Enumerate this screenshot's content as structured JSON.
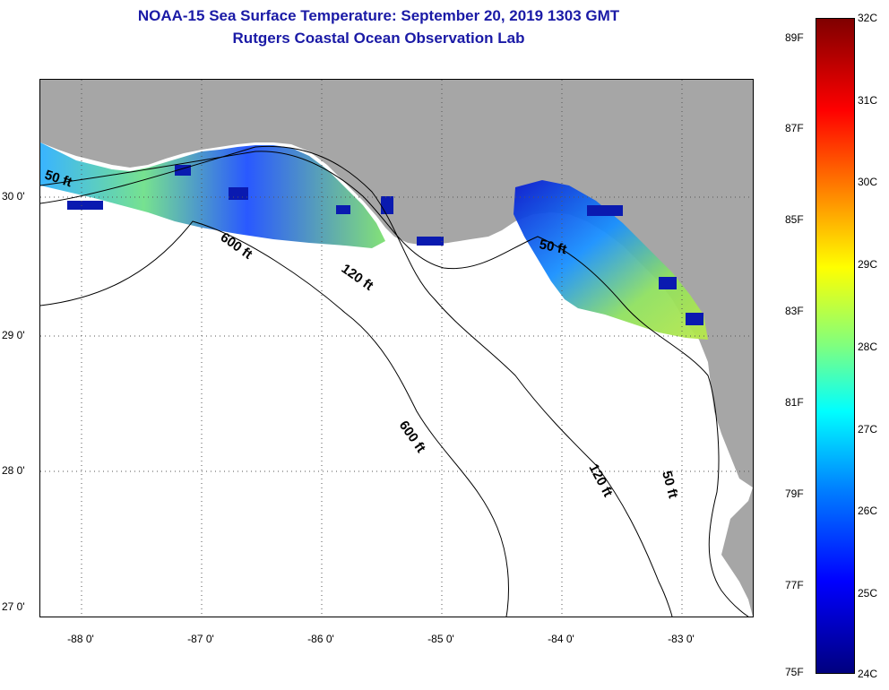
{
  "title": {
    "line1": "NOAA-15 Sea Surface Temperature:  September 20, 2019 1303 GMT",
    "line2": "Rutgers Coastal Ocean Observation Lab"
  },
  "lat_labels": [
    "30 0'",
    "29 0'",
    "28 0'",
    "27 0'"
  ],
  "lon_labels": [
    "-88 0'",
    "-87 0'",
    "-86 0'",
    "-85 0'",
    "-84 0'",
    "-83 0'"
  ],
  "contour_labels": {
    "c50_west": "50 ft",
    "c600_north": "600 ft",
    "c120_north": "120 ft",
    "c50_east": "50 ft",
    "c600_south": "600 ft",
    "c120_south": "120 ft",
    "c50_south": "50 ft"
  },
  "colorbar": {
    "celsius": [
      "32C",
      "31C",
      "30C",
      "29C",
      "28C",
      "27C",
      "26C",
      "25C",
      "24C"
    ],
    "fahrenheit": [
      "89F",
      "87F",
      "85F",
      "83F",
      "81F",
      "79F",
      "77F",
      "75F"
    ]
  },
  "colors": {
    "land": "#a6a6a6",
    "title": "#1a1aa6",
    "water": "#ffffff"
  }
}
